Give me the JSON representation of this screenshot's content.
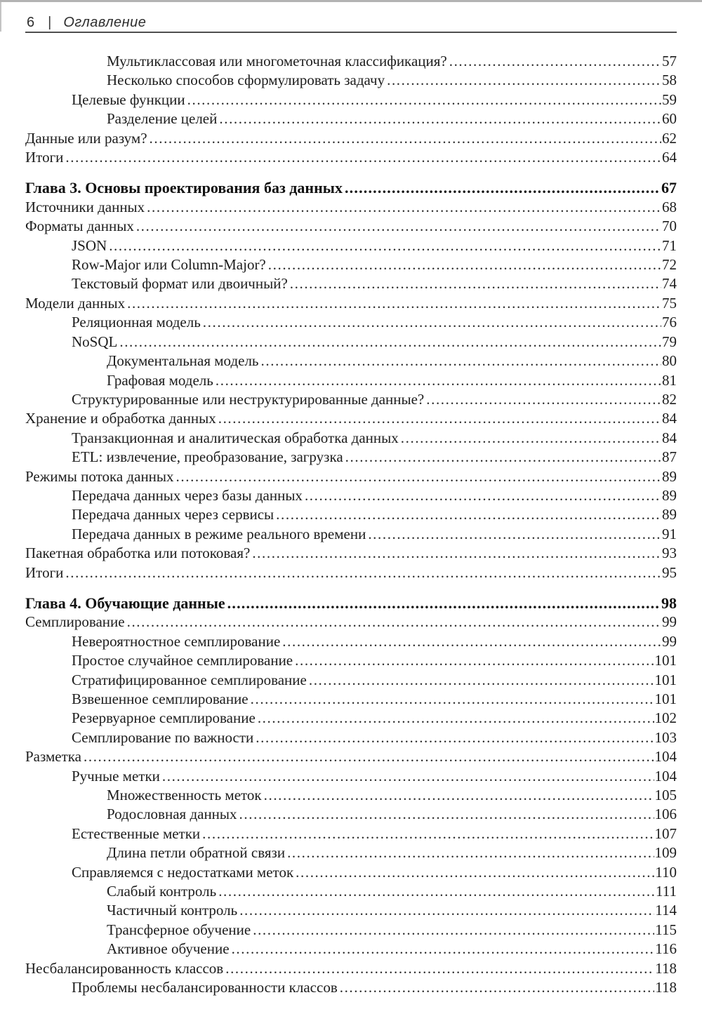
{
  "header": {
    "page_number": "6",
    "separator": "|",
    "title": "Оглавление"
  },
  "colors": {
    "ink": "#1d1d1d",
    "rule": "#4e4e4e"
  },
  "toc": {
    "sections": [
      {
        "heading": null,
        "items": [
          {
            "level": 2,
            "label": "Мультиклассовая или многометочная классификация?",
            "page": "57"
          },
          {
            "level": 2,
            "label": "Несколько способов сформулировать задачу",
            "page": "58"
          },
          {
            "level": 1,
            "label": "Целевые функции",
            "page": "59"
          },
          {
            "level": 2,
            "label": "Разделение целей",
            "page": "60"
          },
          {
            "level": 0,
            "label": "Данные или разум?",
            "page": "62"
          },
          {
            "level": 0,
            "label": "Итоги",
            "page": "64"
          }
        ]
      },
      {
        "heading": {
          "label": "Глава 3. Основы проектирования баз данных",
          "page": "67"
        },
        "items": [
          {
            "level": 0,
            "label": "Источники данных",
            "page": "68"
          },
          {
            "level": 0,
            "label": "Форматы данных",
            "page": "70"
          },
          {
            "level": 1,
            "label": "JSON",
            "page": "71"
          },
          {
            "level": 1,
            "label": "Row-Major или Column-Major?",
            "page": "72"
          },
          {
            "level": 1,
            "label": "Текстовый формат или двоичный?",
            "page": "74"
          },
          {
            "level": 0,
            "label": "Модели данных",
            "page": "75"
          },
          {
            "level": 1,
            "label": "Реляционная модель",
            "page": "76"
          },
          {
            "level": 1,
            "label": "NoSQL",
            "page": "79"
          },
          {
            "level": 2,
            "label": "Документальная модель",
            "page": "80"
          },
          {
            "level": 2,
            "label": "Графовая модель",
            "page": "81"
          },
          {
            "level": 1,
            "label": "Структурированные или неструктурированные данные?",
            "page": "82"
          },
          {
            "level": 0,
            "label": "Хранение и обработка данных",
            "page": "84"
          },
          {
            "level": 1,
            "label": "Транзакционная и аналитическая обработка данных",
            "page": "84"
          },
          {
            "level": 1,
            "label": "ETL: извлечение, преобразование, загрузка",
            "page": "87"
          },
          {
            "level": 0,
            "label": "Режимы потока данных",
            "page": "89"
          },
          {
            "level": 1,
            "label": "Передача данных через базы данных",
            "page": "89"
          },
          {
            "level": 1,
            "label": "Передача данных через сервисы",
            "page": "89"
          },
          {
            "level": 1,
            "label": "Передача данных в режиме реального времени",
            "page": "91"
          },
          {
            "level": 0,
            "label": "Пакетная обработка или потоковая?",
            "page": "93"
          },
          {
            "level": 0,
            "label": "Итоги",
            "page": "95"
          }
        ]
      },
      {
        "heading": {
          "label": "Глава 4. Обучающие данные",
          "page": "98"
        },
        "items": [
          {
            "level": 0,
            "label": "Семплирование",
            "page": "99"
          },
          {
            "level": 1,
            "label": "Невероятностное семплирование",
            "page": "99"
          },
          {
            "level": 1,
            "label": "Простое случайное семплирование",
            "page": "101"
          },
          {
            "level": 1,
            "label": "Стратифицированное семплирование",
            "page": "101"
          },
          {
            "level": 1,
            "label": "Взвешенное семплирование",
            "page": "101"
          },
          {
            "level": 1,
            "label": "Резервуарное семплирование",
            "page": "102"
          },
          {
            "level": 1,
            "label": "Семплирование по важности",
            "page": "103"
          },
          {
            "level": 0,
            "label": "Разметка",
            "page": "104"
          },
          {
            "level": 1,
            "label": "Ручные метки",
            "page": "104"
          },
          {
            "level": 2,
            "label": "Множественность меток",
            "page": "105"
          },
          {
            "level": 2,
            "label": "Родословная данных",
            "page": "106"
          },
          {
            "level": 1,
            "label": "Естественные метки",
            "page": "107"
          },
          {
            "level": 2,
            "label": "Длина петли обратной связи",
            "page": "109"
          },
          {
            "level": 1,
            "label": "Справляемся с недостатками меток",
            "page": "110"
          },
          {
            "level": 2,
            "label": "Слабый контроль",
            "page": "111"
          },
          {
            "level": 2,
            "label": "Частичный контроль",
            "page": "114"
          },
          {
            "level": 2,
            "label": "Трансферное обучение",
            "page": "115"
          },
          {
            "level": 2,
            "label": "Активное обучение",
            "page": "116"
          },
          {
            "level": 0,
            "label": "Несбалансированность классов",
            "page": "118"
          },
          {
            "level": 1,
            "label": "Проблемы несбалансированности классов",
            "page": "118"
          }
        ]
      }
    ]
  }
}
